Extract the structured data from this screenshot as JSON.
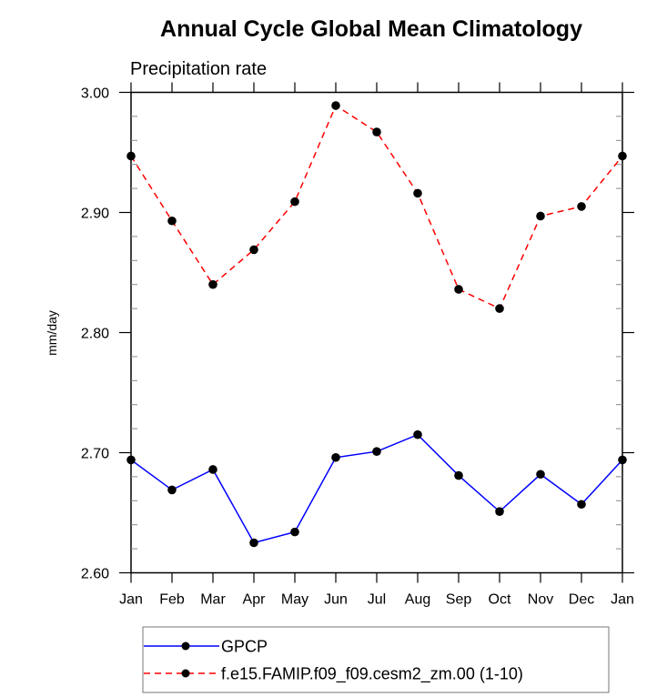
{
  "chart_data": {
    "type": "line",
    "title": "Annual Cycle Global Mean Climatology",
    "subtitle": "Precipitation rate",
    "xlabel": "",
    "ylabel": "mm/day",
    "categories": [
      "Jan",
      "Feb",
      "Mar",
      "Apr",
      "May",
      "Jun",
      "Jul",
      "Aug",
      "Sep",
      "Oct",
      "Nov",
      "Dec",
      "Jan"
    ],
    "ylim": [
      2.6,
      3.0
    ],
    "yticks": [
      2.6,
      2.7,
      2.8,
      2.9,
      3.0
    ],
    "ytick_labels": [
      "2.60",
      "2.70",
      "2.80",
      "2.90",
      "3.00"
    ],
    "y_minor_step": 0.02,
    "grid": false,
    "legend_position": "bottom-center",
    "series": [
      {
        "name": "GPCP",
        "color": "#0000ff",
        "line_style": "solid",
        "marker": "filled-circle",
        "values": [
          2.694,
          2.669,
          2.686,
          2.625,
          2.634,
          2.696,
          2.701,
          2.715,
          2.681,
          2.651,
          2.682,
          2.657,
          2.694
        ]
      },
      {
        "name": "f.e15.FAMIP.f09_f09.cesm2_zm.00 (1-10)",
        "color": "#ff0000",
        "line_style": "dashed",
        "marker": "filled-circle",
        "values": [
          2.947,
          2.893,
          2.84,
          2.869,
          2.909,
          2.989,
          2.967,
          2.916,
          2.836,
          2.82,
          2.897,
          2.905,
          2.947
        ]
      }
    ]
  }
}
